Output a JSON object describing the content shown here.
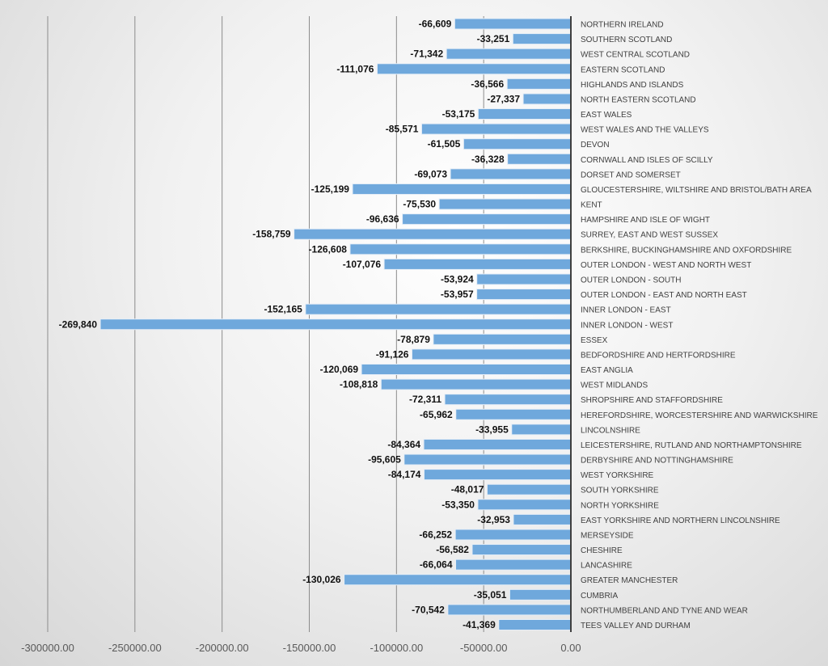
{
  "chart_data": {
    "type": "bar",
    "orientation": "horizontal",
    "title": "",
    "xlabel": "",
    "ylabel": "",
    "xlim": [
      -300000,
      0
    ],
    "x_ticks": [
      "-300000.00",
      "-250000.00",
      "-200000.00",
      "-150000.00",
      "-100000.00",
      "-50000.00",
      "0.00"
    ],
    "x_tick_values": [
      -300000,
      -250000,
      -200000,
      -150000,
      -100000,
      -50000,
      0
    ],
    "grid": "vertical major gridlines",
    "legend": "none",
    "bar_color": "#6fa8dc",
    "categories": [
      "NORTHERN IRELAND",
      "SOUTHERN SCOTLAND",
      "WEST CENTRAL SCOTLAND",
      "EASTERN SCOTLAND",
      "HIGHLANDS AND ISLANDS",
      "NORTH EASTERN SCOTLAND",
      "EAST WALES",
      "WEST WALES AND THE VALLEYS",
      "DEVON",
      "CORNWALL AND ISLES OF SCILLY",
      "DORSET AND SOMERSET",
      "GLOUCESTERSHIRE, WILTSHIRE AND BRISTOL/BATH AREA",
      "KENT",
      "HAMPSHIRE AND ISLE OF WIGHT",
      "SURREY, EAST AND WEST SUSSEX",
      "BERKSHIRE, BUCKINGHAMSHIRE AND OXFORDSHIRE",
      "OUTER LONDON - WEST AND NORTH WEST",
      "OUTER LONDON - SOUTH",
      "OUTER LONDON - EAST AND NORTH EAST",
      "INNER LONDON - EAST",
      "INNER LONDON - WEST",
      "ESSEX",
      "BEDFORDSHIRE AND HERTFORDSHIRE",
      "EAST ANGLIA",
      "WEST MIDLANDS",
      "SHROPSHIRE AND STAFFORDSHIRE",
      "HEREFORDSHIRE, WORCESTERSHIRE AND WARWICKSHIRE",
      "LINCOLNSHIRE",
      "LEICESTERSHIRE, RUTLAND AND NORTHAMPTONSHIRE",
      "DERBYSHIRE AND NOTTINGHAMSHIRE",
      "WEST YORKSHIRE",
      "SOUTH YORKSHIRE",
      "NORTH YORKSHIRE",
      "EAST YORKSHIRE AND NORTHERN LINCOLNSHIRE",
      "MERSEYSIDE",
      "CHESHIRE",
      "LANCASHIRE",
      "GREATER MANCHESTER",
      "CUMBRIA",
      "NORTHUMBERLAND AND TYNE AND WEAR",
      "TEES VALLEY AND DURHAM"
    ],
    "values": [
      -66609,
      -33251,
      -71342,
      -111076,
      -36566,
      -27337,
      -53175,
      -85571,
      -61505,
      -36328,
      -69073,
      -125199,
      -75530,
      -96636,
      -158759,
      -126608,
      -107076,
      -53924,
      -53957,
      -152165,
      -269840,
      -78879,
      -91126,
      -120069,
      -108818,
      -72311,
      -65962,
      -33955,
      -84364,
      -95605,
      -84174,
      -48017,
      -53350,
      -32953,
      -66252,
      -56582,
      -66064,
      -130026,
      -35051,
      -70542,
      -41369
    ],
    "data_labels": [
      "-66,609",
      "-33,251",
      "-71,342",
      "-111,076",
      "-36,566",
      "-27,337",
      "-53,175",
      "-85,571",
      "-61,505",
      "-36,328",
      "-69,073",
      "-125,199",
      "-75,530",
      "-96,636",
      "-158,759",
      "-126,608",
      "-107,076",
      "-53,924",
      "-53,957",
      "-152,165",
      "-269,840",
      "-78,879",
      "-91,126",
      "-120,069",
      "-108,818",
      "-72,311",
      "-65,962",
      "-33,955",
      "-84,364",
      "-95,605",
      "-84,174",
      "-48,017",
      "-53,350",
      "-32,953",
      "-66,252",
      "-56,582",
      "-66,064",
      "-130,026",
      "-35,051",
      "-70,542",
      "-41,369"
    ]
  }
}
